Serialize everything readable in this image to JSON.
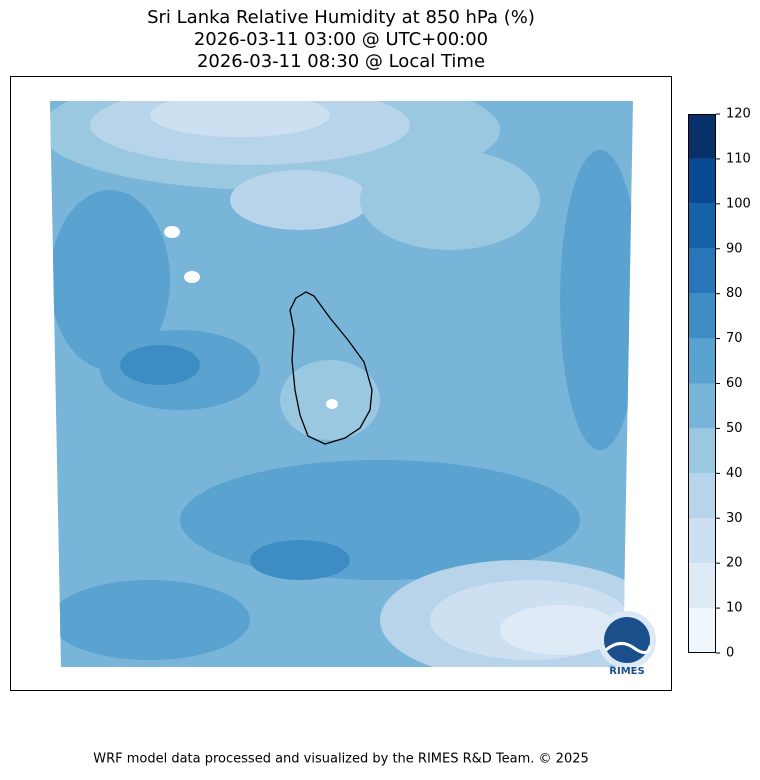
{
  "title": [
    "Sri Lanka Relative Humidity at 850 hPa (%)",
    "2026-03-11 03:00 @ UTC+00:00",
    "2026-03-11 08:30 @ Local Time"
  ],
  "colorbar": {
    "ticks": [
      0,
      10,
      20,
      30,
      40,
      50,
      60,
      70,
      80,
      90,
      100,
      110,
      120
    ],
    "colors": [
      "#eff6fc",
      "#deebf7",
      "#cde0f1",
      "#b7d4ea",
      "#9ac8e0",
      "#79b5d9",
      "#5aa2cf",
      "#3d8dc4",
      "#2676b8",
      "#1562a9",
      "#084b94",
      "#08306b"
    ]
  },
  "logo_text": "RIMES",
  "footer": "WRF model data processed and visualized by the RIMES R&D Team. © 2025"
}
